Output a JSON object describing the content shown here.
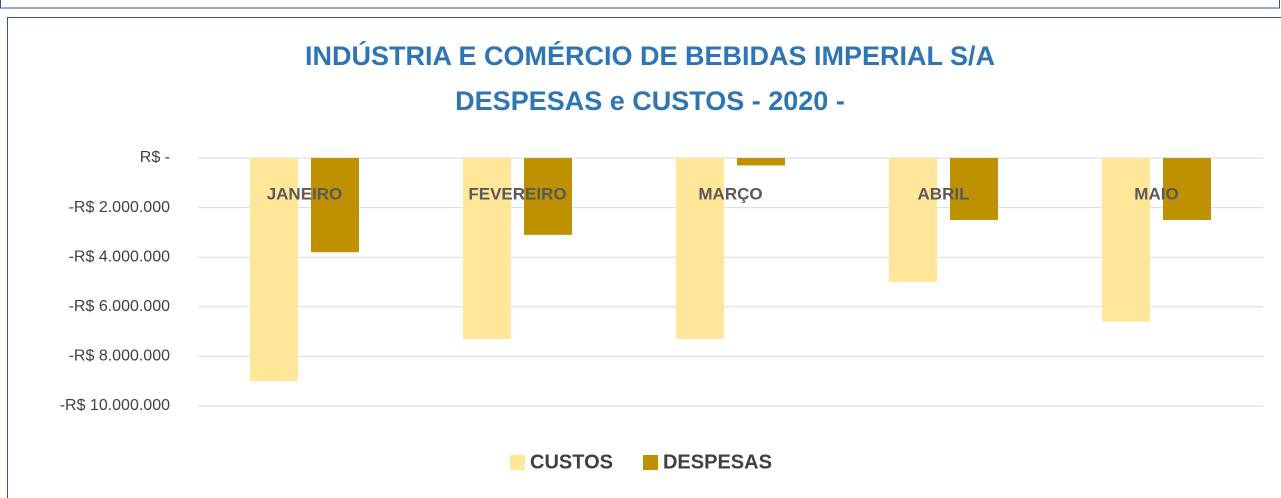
{
  "chart_data": {
    "type": "bar",
    "title": "INDÚSTRIA E COMÉRCIO DE BEBIDAS IMPERIAL S/A",
    "subtitle": "DESPESAS e CUSTOS - 2020 -",
    "categories": [
      "JANEIRO",
      "FEVEREIRO",
      "MARÇO",
      "ABRIL",
      "MAIO"
    ],
    "series": [
      {
        "name": "CUSTOS",
        "color": "#ffe699",
        "values": [
          -9000000,
          -7300000,
          -7300000,
          -5000000,
          -6600000
        ]
      },
      {
        "name": "DESPESAS",
        "color": "#bf9000",
        "values": [
          -3800000,
          -3100000,
          -300000,
          -2500000,
          -2500000
        ]
      }
    ],
    "ylim": [
      -10000000,
      0
    ],
    "yticks": [
      {
        "value": 0,
        "label": "R$ -"
      },
      {
        "value": -2000000,
        "label": "-R$ 2.000.000"
      },
      {
        "value": -4000000,
        "label": "-R$ 4.000.000"
      },
      {
        "value": -6000000,
        "label": "-R$ 6.000.000"
      },
      {
        "value": -8000000,
        "label": "-R$ 8.000.000"
      },
      {
        "value": -10000000,
        "label": "-R$ 10.000.000"
      }
    ],
    "grid": true,
    "legend": "bottom"
  }
}
